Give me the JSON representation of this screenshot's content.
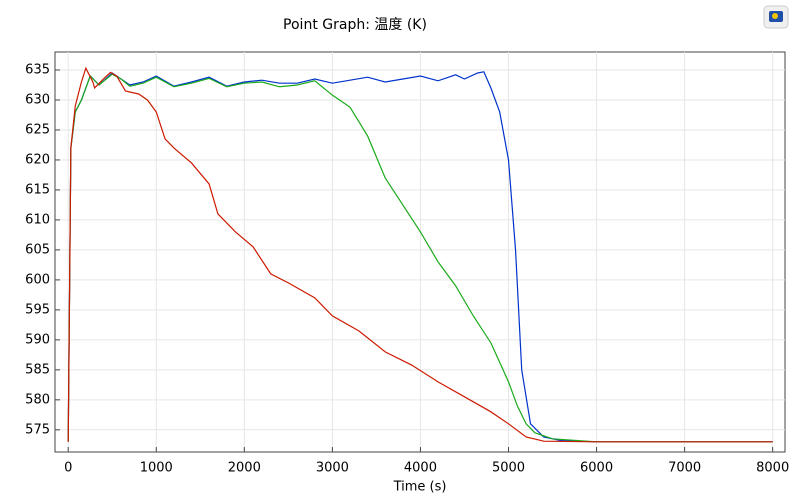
{
  "chart_data": {
    "type": "line",
    "title": "Point Graph: 温度 (K)",
    "x_label": "Time (s)",
    "grid": true,
    "xlim": [
      -150,
      8140
    ],
    "ylim": [
      571.3,
      638
    ],
    "xticks": [
      0,
      1000,
      2000,
      3000,
      4000,
      5000,
      6000,
      7000,
      8000
    ],
    "yticks": [
      575,
      580,
      585,
      590,
      595,
      600,
      605,
      610,
      615,
      620,
      625,
      630,
      635
    ],
    "series": [
      {
        "color": "#0033cc",
        "x": [
          0,
          30,
          80,
          150,
          250,
          350,
          500,
          600,
          700,
          850,
          1000,
          1200,
          1400,
          1600,
          1800,
          2000,
          2200,
          2400,
          2600,
          2800,
          3000,
          3200,
          3400,
          3600,
          3800,
          4000,
          4200,
          4400,
          4500,
          4650,
          4720,
          4800,
          4900,
          5000,
          5080,
          5150,
          5250,
          5400,
          5600,
          6000,
          8000
        ],
        "values": [
          573,
          622,
          628,
          630,
          634,
          632.5,
          634.5,
          633.5,
          632.5,
          633,
          634,
          632.3,
          633,
          633.8,
          632.3,
          633,
          633.3,
          632.8,
          632.8,
          633.5,
          632.8,
          633.3,
          633.8,
          633,
          633.5,
          634,
          633.2,
          634.2,
          633.5,
          634.5,
          634.7,
          632,
          628,
          620,
          605,
          585,
          576,
          573.8,
          573.2,
          573,
          573
        ]
      },
      {
        "color": "#1aaa1a",
        "x": [
          0,
          30,
          80,
          150,
          250,
          350,
          500,
          600,
          700,
          850,
          1000,
          1200,
          1400,
          1600,
          1800,
          2000,
          2200,
          2400,
          2600,
          2800,
          3000,
          3200,
          3400,
          3600,
          3800,
          4000,
          4200,
          4400,
          4600,
          4800,
          5000,
          5100,
          5200,
          5300,
          5500,
          6000,
          8000
        ],
        "values": [
          573,
          622,
          628,
          630,
          634,
          632.5,
          634.3,
          633.5,
          632.3,
          632.8,
          633.8,
          632.2,
          632.8,
          633.6,
          632.2,
          632.8,
          633,
          632.2,
          632.5,
          633.2,
          630.8,
          628.8,
          624,
          617,
          612.5,
          608,
          603,
          599,
          594,
          589.5,
          583,
          579,
          576,
          574.5,
          573.5,
          573,
          573
        ]
      },
      {
        "color": "#cc1a00",
        "x": [
          0,
          30,
          80,
          150,
          200,
          280,
          300,
          400,
          480,
          550,
          650,
          800,
          900,
          1000,
          1100,
          1200,
          1400,
          1600,
          1700,
          1900,
          2100,
          2300,
          2500,
          2800,
          3000,
          3300,
          3600,
          3900,
          4200,
          4500,
          4800,
          5000,
          5200,
          5400,
          6000,
          8000
        ],
        "values": [
          573,
          622,
          629,
          633,
          635.3,
          633,
          632,
          633.5,
          634.6,
          634,
          631.5,
          631,
          630,
          628,
          623.5,
          622,
          619.5,
          616,
          611,
          608,
          605.5,
          601,
          599.5,
          597,
          594,
          591.5,
          588,
          585.8,
          583,
          580.5,
          578,
          576,
          573.8,
          573.1,
          573,
          573
        ]
      }
    ]
  }
}
